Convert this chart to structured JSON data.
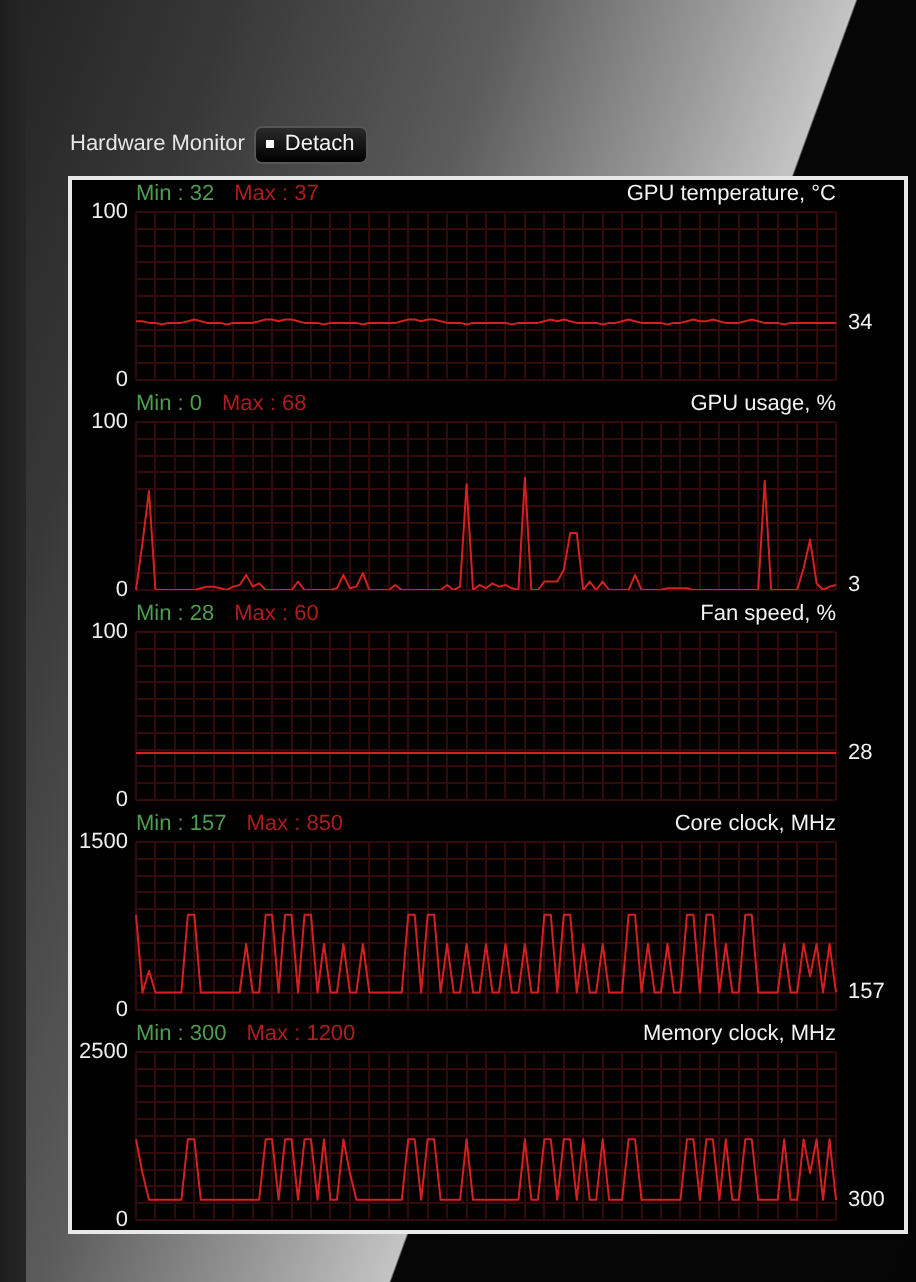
{
  "chart_data": [
    {
      "type": "other",
      "title": "Hardware Monitor",
      "annotations": [
        "Detach"
      ]
    },
    {
      "type": "line",
      "title": "GPU temperature, °C",
      "categories": [
        null,
        null,
        null,
        null,
        null,
        null,
        null,
        null,
        null,
        null,
        null,
        null,
        null,
        null,
        null,
        null,
        null,
        null,
        null,
        null,
        null,
        null,
        null,
        null,
        null,
        null,
        null,
        null,
        null,
        null,
        null,
        null,
        null,
        null,
        null,
        null,
        null,
        null,
        null,
        null,
        null,
        null,
        null,
        null,
        null,
        null,
        null,
        null,
        null,
        null,
        null,
        null,
        null,
        null,
        null,
        null,
        null,
        null,
        null,
        null,
        null,
        null,
        null,
        null,
        null,
        null,
        null,
        null,
        null,
        null,
        null,
        null,
        null,
        null,
        null,
        null,
        null,
        null,
        null,
        null,
        null,
        null,
        null,
        null,
        null,
        null,
        null,
        null,
        null,
        null,
        null,
        null,
        null,
        null,
        null,
        null,
        null,
        null,
        null,
        null,
        null,
        null,
        null,
        null,
        null,
        null,
        null,
        null,
        null
      ],
      "values": [
        35,
        35,
        34,
        34,
        33,
        34,
        34,
        34,
        35,
        36,
        35,
        34,
        34,
        34,
        33,
        34,
        34,
        34,
        34,
        35,
        36,
        36,
        35,
        36,
        36,
        35,
        34,
        34,
        34,
        33,
        34,
        34,
        34,
        34,
        34,
        33,
        34,
        34,
        34,
        34,
        34,
        35,
        36,
        36,
        35,
        36,
        36,
        35,
        34,
        34,
        34,
        33,
        34,
        34,
        34,
        34,
        34,
        34,
        33,
        34,
        34,
        34,
        34,
        35,
        36,
        35,
        36,
        35,
        34,
        34,
        34,
        34,
        33,
        34,
        34,
        35,
        36,
        35,
        34,
        34,
        34,
        34,
        33,
        34,
        34,
        35,
        36,
        35,
        35,
        36,
        35,
        34,
        34,
        34,
        35,
        36,
        35,
        34,
        34,
        34,
        33,
        34,
        34,
        34,
        34,
        34,
        34,
        34,
        34
      ],
      "value_labels": [
        null,
        null,
        null,
        null,
        null,
        null,
        null,
        null,
        null,
        null,
        null,
        null,
        null,
        null,
        null,
        null,
        null,
        null,
        null,
        null,
        null,
        null,
        null,
        null,
        null,
        null,
        null,
        null,
        null,
        null,
        null,
        null,
        null,
        null,
        null,
        null,
        null,
        null,
        null,
        null,
        null,
        null,
        null,
        null,
        null,
        null,
        null,
        null,
        null,
        null,
        null,
        null,
        null,
        null,
        null,
        null,
        null,
        null,
        null,
        null,
        null,
        null,
        null,
        null,
        null,
        null,
        null,
        null,
        null,
        null,
        null,
        null,
        null,
        null,
        null,
        null,
        null,
        null,
        null,
        null,
        null,
        null,
        null,
        null,
        null,
        null,
        null,
        null,
        null,
        null,
        null,
        null,
        null,
        null,
        null,
        null,
        null,
        null,
        null,
        null,
        null,
        null,
        null,
        null,
        null,
        null,
        null,
        null,
        "34"
      ],
      "color": "#d42020",
      "ylim": [
        0,
        100
      ],
      "yticks": [
        0,
        {
          "value": 10,
          "label": null
        },
        {
          "value": 20,
          "label": null
        },
        {
          "value": 30,
          "label": null
        },
        {
          "value": 40,
          "label": null
        },
        {
          "value": 50,
          "label": null
        },
        {
          "value": 60,
          "label": null
        },
        {
          "value": 70,
          "label": null
        },
        {
          "value": 80,
          "label": null
        },
        {
          "value": 90,
          "label": null
        },
        100
      ],
      "tick_labels": "y",
      "grid": true,
      "annotations": [
        "Min : 32",
        "Max : 37"
      ]
    },
    {
      "type": "line",
      "title": "GPU usage, %",
      "categories": [
        null,
        null,
        null,
        null,
        null,
        null,
        null,
        null,
        null,
        null,
        null,
        null,
        null,
        null,
        null,
        null,
        null,
        null,
        null,
        null,
        null,
        null,
        null,
        null,
        null,
        null,
        null,
        null,
        null,
        null,
        null,
        null,
        null,
        null,
        null,
        null,
        null,
        null,
        null,
        null,
        null,
        null,
        null,
        null,
        null,
        null,
        null,
        null,
        null,
        null,
        null,
        null,
        null,
        null,
        null,
        null,
        null,
        null,
        null,
        null,
        null,
        null,
        null,
        null,
        null,
        null,
        null,
        null,
        null,
        null,
        null,
        null,
        null,
        null,
        null,
        null,
        null,
        null,
        null,
        null,
        null,
        null,
        null,
        null,
        null,
        null,
        null,
        null,
        null,
        null,
        null,
        null,
        null,
        null,
        null,
        null,
        null,
        null,
        null,
        null,
        null,
        null,
        null,
        null,
        null,
        null,
        null,
        null,
        null
      ],
      "values": [
        0,
        28,
        59,
        0,
        0,
        0,
        0,
        0,
        0,
        0,
        1,
        2,
        2,
        1,
        0,
        2,
        3,
        9,
        2,
        4,
        0,
        0,
        0,
        0,
        0,
        5,
        0,
        0,
        0,
        0,
        0,
        1,
        9,
        1,
        2,
        10,
        0,
        0,
        0,
        0,
        3,
        0,
        0,
        0,
        0,
        0,
        0,
        0,
        3,
        0,
        2,
        63,
        0,
        3,
        1,
        4,
        2,
        3,
        1,
        0,
        67,
        0,
        0,
        5,
        5,
        5,
        12,
        34,
        34,
        0,
        5,
        0,
        5,
        0,
        0,
        0,
        0,
        9,
        0,
        0,
        0,
        0,
        1,
        1,
        1,
        1,
        0,
        0,
        0,
        0,
        0,
        0,
        0,
        0,
        0,
        0,
        0,
        65,
        0,
        0,
        0,
        0,
        0,
        13,
        30,
        4,
        0,
        2,
        3
      ],
      "value_labels": [
        null,
        null,
        null,
        null,
        null,
        null,
        null,
        null,
        null,
        null,
        null,
        null,
        null,
        null,
        null,
        null,
        null,
        null,
        null,
        null,
        null,
        null,
        null,
        null,
        null,
        null,
        null,
        null,
        null,
        null,
        null,
        null,
        null,
        null,
        null,
        null,
        null,
        null,
        null,
        null,
        null,
        null,
        null,
        null,
        null,
        null,
        null,
        null,
        null,
        null,
        null,
        null,
        null,
        null,
        null,
        null,
        null,
        null,
        null,
        null,
        null,
        null,
        null,
        null,
        null,
        null,
        null,
        null,
        null,
        null,
        null,
        null,
        null,
        null,
        null,
        null,
        null,
        null,
        null,
        null,
        null,
        null,
        null,
        null,
        null,
        null,
        null,
        null,
        null,
        null,
        null,
        null,
        null,
        null,
        null,
        null,
        null,
        null,
        null,
        null,
        null,
        null,
        null,
        null,
        null,
        null,
        null,
        null,
        "3"
      ],
      "color": "#d42020",
      "ylim": [
        0,
        100
      ],
      "yticks": [
        0,
        {
          "value": 10,
          "label": null
        },
        {
          "value": 20,
          "label": null
        },
        {
          "value": 30,
          "label": null
        },
        {
          "value": 40,
          "label": null
        },
        {
          "value": 50,
          "label": null
        },
        {
          "value": 60,
          "label": null
        },
        {
          "value": 70,
          "label": null
        },
        {
          "value": 80,
          "label": null
        },
        {
          "value": 90,
          "label": null
        },
        100
      ],
      "tick_labels": "y",
      "grid": true,
      "annotations": [
        "Min : 0",
        "Max : 68"
      ]
    },
    {
      "type": "line",
      "title": "Fan speed, %",
      "categories": [
        null,
        null,
        null,
        null,
        null,
        null,
        null,
        null,
        null,
        null,
        null,
        null,
        null,
        null,
        null,
        null,
        null,
        null,
        null,
        null,
        null,
        null,
        null,
        null,
        null,
        null,
        null,
        null,
        null,
        null,
        null,
        null,
        null,
        null,
        null,
        null,
        null,
        null,
        null,
        null,
        null,
        null,
        null,
        null,
        null,
        null,
        null,
        null,
        null,
        null,
        null,
        null,
        null,
        null,
        null,
        null,
        null,
        null,
        null,
        null,
        null,
        null,
        null,
        null,
        null,
        null,
        null,
        null,
        null,
        null,
        null,
        null,
        null,
        null,
        null,
        null,
        null,
        null,
        null,
        null,
        null,
        null,
        null,
        null,
        null,
        null,
        null,
        null,
        null,
        null,
        null,
        null,
        null,
        null,
        null,
        null,
        null,
        null,
        null,
        null,
        null,
        null,
        null,
        null,
        null,
        null,
        null,
        null,
        null
      ],
      "values": [
        28,
        28,
        28,
        28,
        28,
        28,
        28,
        28,
        28,
        28,
        28,
        28,
        28,
        28,
        28,
        28,
        28,
        28,
        28,
        28,
        28,
        28,
        28,
        28,
        28,
        28,
        28,
        28,
        28,
        28,
        28,
        28,
        28,
        28,
        28,
        28,
        28,
        28,
        28,
        28,
        28,
        28,
        28,
        28,
        28,
        28,
        28,
        28,
        28,
        28,
        28,
        28,
        28,
        28,
        28,
        28,
        28,
        28,
        28,
        28,
        28,
        28,
        28,
        28,
        28,
        28,
        28,
        28,
        28,
        28,
        28,
        28,
        28,
        28,
        28,
        28,
        28,
        28,
        28,
        28,
        28,
        28,
        28,
        28,
        28,
        28,
        28,
        28,
        28,
        28,
        28,
        28,
        28,
        28,
        28,
        28,
        28,
        28,
        28,
        28,
        28,
        28,
        28,
        28,
        28,
        28,
        28,
        28,
        28
      ],
      "value_labels": [
        null,
        null,
        null,
        null,
        null,
        null,
        null,
        null,
        null,
        null,
        null,
        null,
        null,
        null,
        null,
        null,
        null,
        null,
        null,
        null,
        null,
        null,
        null,
        null,
        null,
        null,
        null,
        null,
        null,
        null,
        null,
        null,
        null,
        null,
        null,
        null,
        null,
        null,
        null,
        null,
        null,
        null,
        null,
        null,
        null,
        null,
        null,
        null,
        null,
        null,
        null,
        null,
        null,
        null,
        null,
        null,
        null,
        null,
        null,
        null,
        null,
        null,
        null,
        null,
        null,
        null,
        null,
        null,
        null,
        null,
        null,
        null,
        null,
        null,
        null,
        null,
        null,
        null,
        null,
        null,
        null,
        null,
        null,
        null,
        null,
        null,
        null,
        null,
        null,
        null,
        null,
        null,
        null,
        null,
        null,
        null,
        null,
        null,
        null,
        null,
        null,
        null,
        null,
        null,
        null,
        null,
        null,
        null,
        "28"
      ],
      "color": "#d42020",
      "ylim": [
        0,
        100
      ],
      "yticks": [
        0,
        {
          "value": 10,
          "label": null
        },
        {
          "value": 20,
          "label": null
        },
        {
          "value": 30,
          "label": null
        },
        {
          "value": 40,
          "label": null
        },
        {
          "value": 50,
          "label": null
        },
        {
          "value": 60,
          "label": null
        },
        {
          "value": 70,
          "label": null
        },
        {
          "value": 80,
          "label": null
        },
        {
          "value": 90,
          "label": null
        },
        100
      ],
      "tick_labels": "y",
      "grid": true,
      "annotations": [
        "Min : 28",
        "Max : 60"
      ]
    },
    {
      "type": "line",
      "title": "Core clock, MHz",
      "categories": [
        null,
        null,
        null,
        null,
        null,
        null,
        null,
        null,
        null,
        null,
        null,
        null,
        null,
        null,
        null,
        null,
        null,
        null,
        null,
        null,
        null,
        null,
        null,
        null,
        null,
        null,
        null,
        null,
        null,
        null,
        null,
        null,
        null,
        null,
        null,
        null,
        null,
        null,
        null,
        null,
        null,
        null,
        null,
        null,
        null,
        null,
        null,
        null,
        null,
        null,
        null,
        null,
        null,
        null,
        null,
        null,
        null,
        null,
        null,
        null,
        null,
        null,
        null,
        null,
        null,
        null,
        null,
        null,
        null,
        null,
        null,
        null,
        null,
        null,
        null,
        null,
        null,
        null,
        null,
        null,
        null,
        null,
        null,
        null,
        null,
        null,
        null,
        null,
        null,
        null,
        null,
        null,
        null,
        null,
        null,
        null,
        null,
        null,
        null,
        null,
        null,
        null,
        null,
        null,
        null,
        null,
        null,
        null,
        null
      ],
      "values": [
        850,
        157,
        350,
        157,
        157,
        157,
        157,
        157,
        850,
        850,
        157,
        157,
        157,
        157,
        157,
        157,
        157,
        590,
        157,
        157,
        850,
        850,
        157,
        850,
        850,
        157,
        850,
        850,
        157,
        590,
        157,
        157,
        590,
        157,
        157,
        590,
        157,
        157,
        157,
        157,
        157,
        157,
        850,
        850,
        157,
        850,
        850,
        157,
        590,
        157,
        157,
        590,
        157,
        157,
        590,
        157,
        157,
        590,
        157,
        157,
        590,
        157,
        157,
        850,
        850,
        157,
        850,
        850,
        157,
        590,
        157,
        157,
        590,
        157,
        157,
        157,
        850,
        850,
        157,
        590,
        157,
        157,
        590,
        157,
        157,
        850,
        850,
        157,
        850,
        850,
        157,
        590,
        157,
        157,
        850,
        850,
        157,
        157,
        157,
        157,
        590,
        157,
        157,
        590,
        300,
        590,
        157,
        590,
        157
      ],
      "value_labels": [
        null,
        null,
        null,
        null,
        null,
        null,
        null,
        null,
        null,
        null,
        null,
        null,
        null,
        null,
        null,
        null,
        null,
        null,
        null,
        null,
        null,
        null,
        null,
        null,
        null,
        null,
        null,
        null,
        null,
        null,
        null,
        null,
        null,
        null,
        null,
        null,
        null,
        null,
        null,
        null,
        null,
        null,
        null,
        null,
        null,
        null,
        null,
        null,
        null,
        null,
        null,
        null,
        null,
        null,
        null,
        null,
        null,
        null,
        null,
        null,
        null,
        null,
        null,
        null,
        null,
        null,
        null,
        null,
        null,
        null,
        null,
        null,
        null,
        null,
        null,
        null,
        null,
        null,
        null,
        null,
        null,
        null,
        null,
        null,
        null,
        null,
        null,
        null,
        null,
        null,
        null,
        null,
        null,
        null,
        null,
        null,
        null,
        null,
        null,
        null,
        null,
        null,
        null,
        null,
        null,
        null,
        null,
        null,
        "157"
      ],
      "color": "#d42020",
      "ylim": [
        0,
        1500
      ],
      "yticks": [
        0,
        {
          "value": 150,
          "label": null
        },
        {
          "value": 300,
          "label": null
        },
        {
          "value": 450,
          "label": null
        },
        {
          "value": 600,
          "label": null
        },
        {
          "value": 750,
          "label": null
        },
        {
          "value": 900,
          "label": null
        },
        {
          "value": 1050,
          "label": null
        },
        {
          "value": 1200,
          "label": null
        },
        {
          "value": 1350,
          "label": null
        },
        1500
      ],
      "tick_labels": "y",
      "grid": true,
      "annotations": [
        "Min : 157",
        "Max : 850"
      ]
    },
    {
      "type": "line",
      "title": "Memory clock, MHz",
      "categories": [
        null,
        null,
        null,
        null,
        null,
        null,
        null,
        null,
        null,
        null,
        null,
        null,
        null,
        null,
        null,
        null,
        null,
        null,
        null,
        null,
        null,
        null,
        null,
        null,
        null,
        null,
        null,
        null,
        null,
        null,
        null,
        null,
        null,
        null,
        null,
        null,
        null,
        null,
        null,
        null,
        null,
        null,
        null,
        null,
        null,
        null,
        null,
        null,
        null,
        null,
        null,
        null,
        null,
        null,
        null,
        null,
        null,
        null,
        null,
        null,
        null,
        null,
        null,
        null,
        null,
        null,
        null,
        null,
        null,
        null,
        null,
        null,
        null,
        null,
        null,
        null,
        null,
        null,
        null,
        null,
        null,
        null,
        null,
        null,
        null,
        null,
        null,
        null,
        null,
        null,
        null,
        null,
        null,
        null,
        null,
        null,
        null,
        null,
        null,
        null,
        null,
        null,
        null,
        null,
        null,
        null,
        null,
        null,
        null
      ],
      "values": [
        1200,
        700,
        300,
        300,
        300,
        300,
        300,
        300,
        1200,
        1200,
        300,
        300,
        300,
        300,
        300,
        300,
        300,
        300,
        300,
        300,
        1200,
        1200,
        300,
        1200,
        1200,
        300,
        1200,
        1200,
        300,
        1200,
        300,
        300,
        1200,
        700,
        300,
        300,
        300,
        300,
        300,
        300,
        300,
        300,
        1200,
        1200,
        300,
        1200,
        1200,
        300,
        300,
        300,
        300,
        1200,
        300,
        300,
        300,
        300,
        300,
        300,
        300,
        300,
        1200,
        300,
        300,
        1200,
        1200,
        300,
        1200,
        1200,
        300,
        1200,
        300,
        300,
        1200,
        300,
        300,
        300,
        1200,
        1200,
        300,
        300,
        300,
        300,
        300,
        300,
        300,
        1200,
        1200,
        300,
        1200,
        1200,
        300,
        1200,
        300,
        300,
        1200,
        1200,
        300,
        300,
        300,
        300,
        1200,
        300,
        300,
        1200,
        700,
        1200,
        300,
        1200,
        300
      ],
      "value_labels": [
        null,
        null,
        null,
        null,
        null,
        null,
        null,
        null,
        null,
        null,
        null,
        null,
        null,
        null,
        null,
        null,
        null,
        null,
        null,
        null,
        null,
        null,
        null,
        null,
        null,
        null,
        null,
        null,
        null,
        null,
        null,
        null,
        null,
        null,
        null,
        null,
        null,
        null,
        null,
        null,
        null,
        null,
        null,
        null,
        null,
        null,
        null,
        null,
        null,
        null,
        null,
        null,
        null,
        null,
        null,
        null,
        null,
        null,
        null,
        null,
        null,
        null,
        null,
        null,
        null,
        null,
        null,
        null,
        null,
        null,
        null,
        null,
        null,
        null,
        null,
        null,
        null,
        null,
        null,
        null,
        null,
        null,
        null,
        null,
        null,
        null,
        null,
        null,
        null,
        null,
        null,
        null,
        null,
        null,
        null,
        null,
        null,
        null,
        null,
        null,
        null,
        null,
        null,
        null,
        null,
        null,
        null,
        null,
        "300"
      ],
      "color": "#d42020",
      "ylim": [
        0,
        2500
      ],
      "yticks": [
        0,
        {
          "value": 250,
          "label": null
        },
        {
          "value": 500,
          "label": null
        },
        {
          "value": 750,
          "label": null
        },
        {
          "value": 1000,
          "label": null
        },
        {
          "value": 1250,
          "label": null
        },
        {
          "value": 1500,
          "label": null
        },
        {
          "value": 1750,
          "label": null
        },
        {
          "value": 2000,
          "label": null
        },
        {
          "value": 2250,
          "label": null
        },
        2500
      ],
      "tick_labels": "y",
      "grid": true,
      "annotations": [
        "Min : 300",
        "Max : 1200"
      ]
    }
  ]
}
